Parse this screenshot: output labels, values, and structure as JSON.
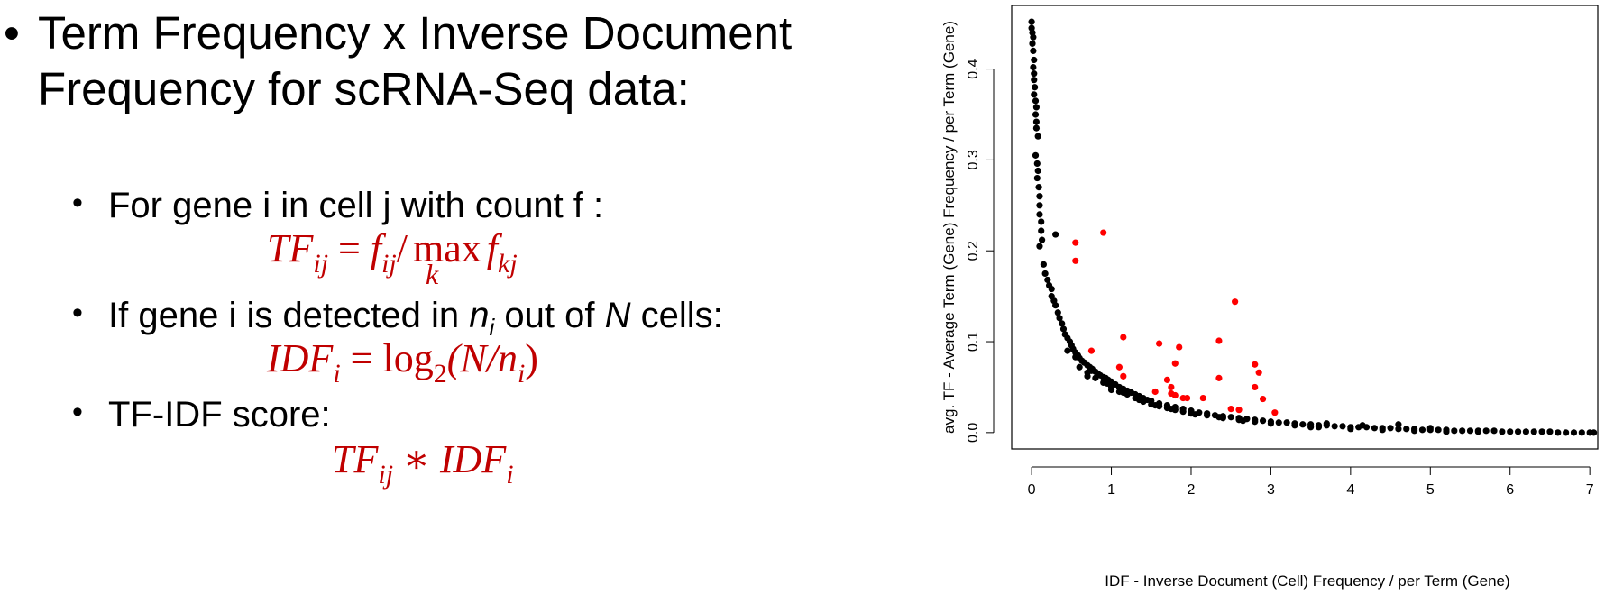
{
  "slide": {
    "bullet_symbol": "•",
    "heading": "Term Frequency x Inverse Document Frequency for scRNA-Seq data:",
    "items": [
      {
        "text": "For gene i in cell j with count f :",
        "formula": {
          "lhs": "TF",
          "lhs_sub": "ij",
          "eq": "=",
          "f1": "f",
          "f1_sub": "ij",
          "slash": "/",
          "op": "max",
          "op_sub": "k",
          "f2": "f",
          "f2_sub": "kj"
        }
      },
      {
        "text_pre": "If gene i is detected in ",
        "n": "n",
        "n_sub": "i",
        "text_mid": " out of ",
        "N": "N",
        "text_post": " cells:",
        "formula": {
          "lhs": "IDF",
          "lhs_sub": "i",
          "eq": "=",
          "log": "log",
          "log_sub": "2",
          "arg": "(N/n",
          "arg_sub": "i",
          "close": ")"
        }
      },
      {
        "text": "TF-IDF score:",
        "formula": {
          "a": "TF",
          "a_sub": "ij",
          "op": "∗",
          "b": "IDF",
          "b_sub": "i"
        }
      }
    ]
  },
  "chart_data": {
    "type": "scatter",
    "title": "",
    "xlabel": "IDF - Inverse Document (Cell) Frequency / per Term (Gene)",
    "ylabel": "avg. TF - Average Term (Gene) Frequency / per Term (Gene)",
    "xlim": [
      -0.25,
      7.1
    ],
    "ylim": [
      -0.018,
      0.47
    ],
    "xticks": [
      0,
      1,
      2,
      3,
      4,
      5,
      6,
      7
    ],
    "yticks": [
      0.0,
      0.1,
      0.2,
      0.3,
      0.4
    ],
    "ytick_labels": [
      "0.0",
      "0.1",
      "0.2",
      "0.3",
      "0.4"
    ],
    "grid": false,
    "legend": "none",
    "colors": {
      "black_series": "#000000",
      "red_series": "#ff0000"
    },
    "series": [
      {
        "color": "#000000",
        "points": [
          [
            0.0,
            0.452
          ],
          [
            0.0,
            0.445
          ],
          [
            0.01,
            0.44
          ],
          [
            0.02,
            0.435
          ],
          [
            0.01,
            0.428
          ],
          [
            0.02,
            0.42
          ],
          [
            0.03,
            0.41
          ],
          [
            0.02,
            0.402
          ],
          [
            0.03,
            0.395
          ],
          [
            0.03,
            0.388
          ],
          [
            0.04,
            0.38
          ],
          [
            0.03,
            0.372
          ],
          [
            0.05,
            0.365
          ],
          [
            0.06,
            0.358
          ],
          [
            0.05,
            0.35
          ],
          [
            0.06,
            0.342
          ],
          [
            0.06,
            0.335
          ],
          [
            0.08,
            0.326
          ],
          [
            0.05,
            0.305
          ],
          [
            0.07,
            0.296
          ],
          [
            0.08,
            0.288
          ],
          [
            0.07,
            0.28
          ],
          [
            0.09,
            0.27
          ],
          [
            0.1,
            0.26
          ],
          [
            0.1,
            0.25
          ],
          [
            0.1,
            0.24
          ],
          [
            0.12,
            0.232
          ],
          [
            0.12,
            0.222
          ],
          [
            0.13,
            0.212
          ],
          [
            0.1,
            0.205
          ],
          [
            0.15,
            0.185
          ],
          [
            0.17,
            0.175
          ],
          [
            0.2,
            0.168
          ],
          [
            0.22,
            0.162
          ],
          [
            0.25,
            0.158
          ],
          [
            0.3,
            0.218
          ],
          [
            0.25,
            0.15
          ],
          [
            0.28,
            0.145
          ],
          [
            0.3,
            0.14
          ],
          [
            0.33,
            0.132
          ],
          [
            0.35,
            0.126
          ],
          [
            0.38,
            0.12
          ],
          [
            0.4,
            0.114
          ],
          [
            0.42,
            0.108
          ],
          [
            0.45,
            0.104
          ],
          [
            0.48,
            0.1
          ],
          [
            0.5,
            0.096
          ],
          [
            0.52,
            0.092
          ],
          [
            0.55,
            0.088
          ],
          [
            0.58,
            0.085
          ],
          [
            0.6,
            0.082
          ],
          [
            0.63,
            0.079
          ],
          [
            0.66,
            0.077
          ],
          [
            0.7,
            0.074
          ],
          [
            0.73,
            0.072
          ],
          [
            0.76,
            0.07
          ],
          [
            0.8,
            0.067
          ],
          [
            0.83,
            0.065
          ],
          [
            0.86,
            0.063
          ],
          [
            0.9,
            0.061
          ],
          [
            0.93,
            0.06
          ],
          [
            0.96,
            0.058
          ],
          [
            1.0,
            0.056
          ],
          [
            1.05,
            0.053
          ],
          [
            1.1,
            0.05
          ],
          [
            1.15,
            0.048
          ],
          [
            1.2,
            0.046
          ],
          [
            1.25,
            0.044
          ],
          [
            1.3,
            0.042
          ],
          [
            1.35,
            0.04
          ],
          [
            1.4,
            0.038
          ],
          [
            1.45,
            0.036
          ],
          [
            1.5,
            0.035
          ],
          [
            1.6,
            0.032
          ],
          [
            1.7,
            0.03
          ],
          [
            1.8,
            0.028
          ],
          [
            1.9,
            0.026
          ],
          [
            2.0,
            0.024
          ],
          [
            2.1,
            0.022
          ],
          [
            2.2,
            0.021
          ],
          [
            2.3,
            0.019
          ],
          [
            2.4,
            0.018
          ],
          [
            2.5,
            0.017
          ],
          [
            2.6,
            0.016
          ],
          [
            2.7,
            0.015
          ],
          [
            2.8,
            0.014
          ],
          [
            2.9,
            0.013
          ],
          [
            3.0,
            0.012
          ],
          [
            3.1,
            0.011
          ],
          [
            3.2,
            0.011
          ],
          [
            3.3,
            0.01
          ],
          [
            3.4,
            0.009
          ],
          [
            3.5,
            0.009
          ],
          [
            3.6,
            0.008
          ],
          [
            3.7,
            0.008
          ],
          [
            3.8,
            0.007
          ],
          [
            3.9,
            0.007
          ],
          [
            4.0,
            0.006
          ],
          [
            4.1,
            0.006
          ],
          [
            4.2,
            0.006
          ],
          [
            4.3,
            0.005
          ],
          [
            4.4,
            0.005
          ],
          [
            4.5,
            0.005
          ],
          [
            4.6,
            0.004
          ],
          [
            4.7,
            0.004
          ],
          [
            4.8,
            0.004
          ],
          [
            4.9,
            0.003
          ],
          [
            5.0,
            0.003
          ],
          [
            5.1,
            0.003
          ],
          [
            5.2,
            0.003
          ],
          [
            5.3,
            0.002
          ],
          [
            5.4,
            0.002
          ],
          [
            5.5,
            0.002
          ],
          [
            5.6,
            0.002
          ],
          [
            5.7,
            0.002
          ],
          [
            5.8,
            0.002
          ],
          [
            5.9,
            0.001
          ],
          [
            6.0,
            0.001
          ],
          [
            6.1,
            0.001
          ],
          [
            6.2,
            0.001
          ],
          [
            6.3,
            0.001
          ],
          [
            6.4,
            0.001
          ],
          [
            6.5,
            0.001
          ],
          [
            6.6,
            0.0
          ],
          [
            6.7,
            0.0
          ],
          [
            6.8,
            0.0
          ],
          [
            6.9,
            0.0
          ],
          [
            7.0,
            0.0
          ],
          [
            7.05,
            0.0
          ],
          [
            0.6,
            0.072
          ],
          [
            0.7,
            0.066
          ],
          [
            0.8,
            0.06
          ],
          [
            0.9,
            0.055
          ],
          [
            1.0,
            0.05
          ],
          [
            1.1,
            0.045
          ],
          [
            1.2,
            0.042
          ],
          [
            1.3,
            0.038
          ],
          [
            1.4,
            0.034
          ],
          [
            1.5,
            0.031
          ],
          [
            1.6,
            0.029
          ],
          [
            1.7,
            0.027
          ],
          [
            1.8,
            0.025
          ],
          [
            1.9,
            0.023
          ],
          [
            2.0,
            0.021
          ],
          [
            2.2,
            0.019
          ],
          [
            2.4,
            0.016
          ],
          [
            2.6,
            0.014
          ],
          [
            2.8,
            0.012
          ],
          [
            3.0,
            0.01
          ],
          [
            3.3,
            0.008
          ],
          [
            3.6,
            0.006
          ],
          [
            4.0,
            0.004
          ],
          [
            4.4,
            0.003
          ],
          [
            4.8,
            0.002
          ],
          [
            5.2,
            0.001
          ],
          [
            5.6,
            0.001
          ],
          [
            0.45,
            0.09
          ],
          [
            0.55,
            0.083
          ],
          [
            0.75,
            0.068
          ],
          [
            0.95,
            0.054
          ],
          [
            1.15,
            0.044
          ],
          [
            1.35,
            0.036
          ],
          [
            1.55,
            0.03
          ],
          [
            1.75,
            0.026
          ],
          [
            2.05,
            0.02
          ],
          [
            2.35,
            0.017
          ],
          [
            2.65,
            0.013
          ],
          [
            3.5,
            0.006
          ],
          [
            4.6,
            0.009
          ],
          [
            4.15,
            0.008
          ],
          [
            3.7,
            0.01
          ],
          [
            5.0,
            0.005
          ],
          [
            0.7,
            0.062
          ],
          [
            1.0,
            0.047
          ]
        ]
      },
      {
        "color": "#ff0000",
        "points": [
          [
            0.55,
            0.209
          ],
          [
            0.55,
            0.189
          ],
          [
            0.9,
            0.22
          ],
          [
            1.15,
            0.105
          ],
          [
            1.1,
            0.072
          ],
          [
            1.15,
            0.062
          ],
          [
            1.6,
            0.098
          ],
          [
            1.85,
            0.094
          ],
          [
            1.8,
            0.076
          ],
          [
            1.7,
            0.058
          ],
          [
            1.75,
            0.05
          ],
          [
            1.8,
            0.041
          ],
          [
            1.9,
            0.038
          ],
          [
            1.95,
            0.038
          ],
          [
            2.15,
            0.038
          ],
          [
            2.35,
            0.101
          ],
          [
            2.55,
            0.144
          ],
          [
            2.35,
            0.06
          ],
          [
            2.8,
            0.075
          ],
          [
            2.85,
            0.066
          ],
          [
            2.8,
            0.05
          ],
          [
            2.9,
            0.037
          ],
          [
            2.5,
            0.026
          ],
          [
            2.6,
            0.025
          ],
          [
            3.05,
            0.022
          ],
          [
            1.55,
            0.045
          ],
          [
            1.75,
            0.043
          ],
          [
            0.75,
            0.09
          ]
        ]
      }
    ]
  }
}
